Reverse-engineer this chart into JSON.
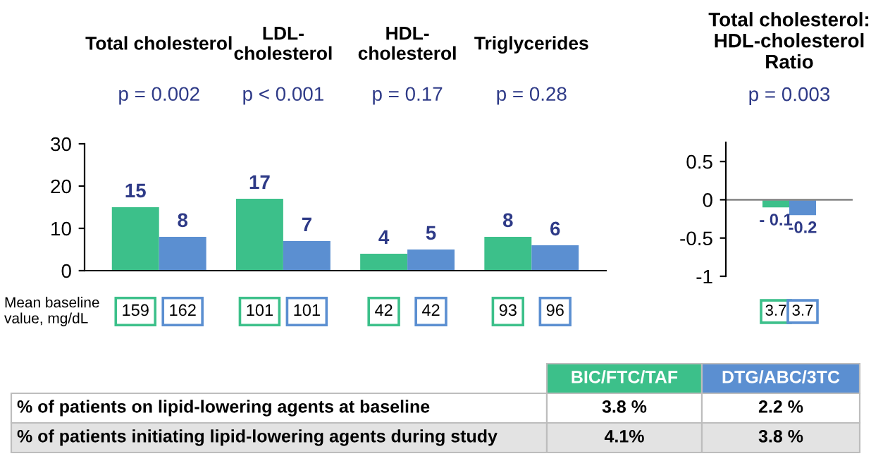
{
  "chart_data": [
    {
      "type": "bar",
      "categories": [
        "Total cholesterol",
        "LDL-\ncholesterol",
        "HDL-\ncholesterol",
        "Triglycerides"
      ],
      "series": [
        {
          "color": "#3cc08a",
          "values": [
            15,
            17,
            4,
            8
          ]
        },
        {
          "color": "#5b8fd1",
          "values": [
            8,
            7,
            5,
            6
          ]
        }
      ],
      "data_labels": true,
      "ylim": [
        0,
        30
      ],
      "yticks": [
        0,
        10,
        20,
        30
      ],
      "grid": false,
      "annotations": [
        "p = 0.002",
        "p < 0.001",
        "p = 0.17",
        "p = 0.28",
        "Mean baseline\nvalue, mg/dL",
        "159",
        "162",
        "101",
        "101",
        "42",
        "42",
        "93",
        "96"
      ]
    },
    {
      "type": "bar",
      "title": "Total cholesterol:\nHDL-cholesterol\nRatio",
      "categories": [
        null
      ],
      "series": [
        {
          "color": "#3cc08a",
          "values": [
            -0.1
          ],
          "value_labels": [
            "- 0.1"
          ]
        },
        {
          "color": "#5b8fd1",
          "values": [
            -0.2
          ],
          "value_labels": [
            "-0.2"
          ]
        }
      ],
      "ylim": [
        -1,
        0.75
      ],
      "yticks": [
        {
          "value": -1,
          "label": "-1"
        },
        {
          "value": -0.5,
          "label": "-0.5"
        },
        0,
        0.5
      ],
      "grid": false,
      "ref_lines": [
        {
          "axis": "y",
          "value": 0,
          "color": "#8c8c8c"
        }
      ],
      "annotations": [
        "p = 0.003",
        "3.7",
        "3.7"
      ]
    },
    {
      "type": "other",
      "annotations": [
        "BIC/FTC/TAF",
        "DTG/ABC/3TC",
        "% of patients on lipid-lowering agents at baseline",
        "3.8 %",
        "2.2 %",
        "% of patients initiating lipid-lowering agents during study",
        "4.1%",
        "3.8 %"
      ]
    }
  ]
}
